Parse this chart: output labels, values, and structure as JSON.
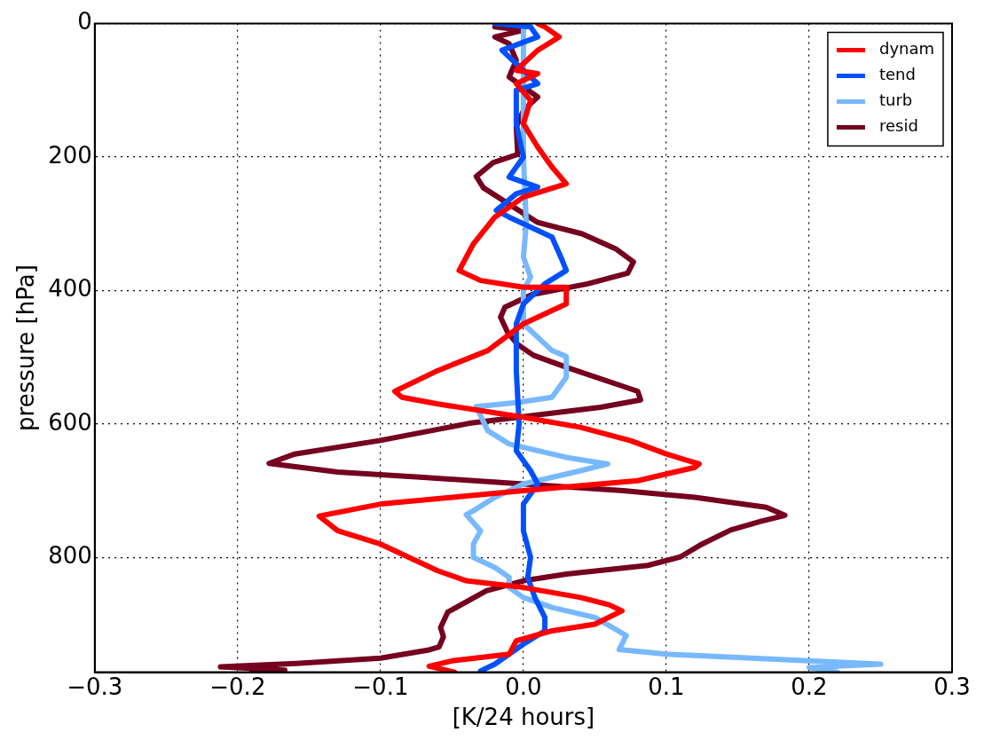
{
  "chart_data": {
    "type": "line",
    "xlabel": "[K/24 hours]",
    "ylabel": "pressure [hPa]",
    "xlim": [
      -0.3,
      0.3
    ],
    "xticks": [
      {
        "value": -0.3,
        "label": "−0.3"
      },
      {
        "value": -0.2,
        "label": "−0.2"
      },
      {
        "value": -0.1,
        "label": "−0.1"
      },
      {
        "value": 0,
        "label": "0.0"
      },
      0.1,
      0.2,
      0.3
    ],
    "ylim": [
      972,
      0
    ],
    "yticks": [
      0,
      200,
      400,
      600,
      800
    ],
    "grid": true,
    "legend": "top right",
    "marker": "none",
    "line_style": "solid",
    "series": [
      {
        "name": "dynam",
        "color": "#ff0000",
        "x": [
          0.01,
          0.015,
          0.025,
          0.01,
          -0.005,
          0.01,
          -0.005,
          0.005,
          0.0,
          0.01,
          0.02,
          0.03,
          0.0,
          -0.02,
          -0.035,
          -0.045,
          -0.03,
          0.0,
          0.03,
          0.03,
          0.0,
          -0.025,
          -0.06,
          -0.09,
          -0.085,
          -0.06,
          0.0,
          0.04,
          0.075,
          0.1,
          0.123,
          0.12,
          0.08,
          0.0,
          -0.05,
          -0.1,
          -0.143,
          -0.13,
          -0.1,
          -0.08,
          -0.06,
          -0.04,
          0.0,
          0.04,
          0.06,
          0.069,
          0.05,
          0.02,
          -0.005,
          -0.01,
          -0.05,
          -0.066,
          -0.048
        ],
        "values": [
          0,
          5,
          20,
          40,
          70,
          75,
          90,
          115,
          150,
          185,
          215,
          240,
          260,
          290,
          330,
          370,
          385,
          395,
          395,
          420,
          450,
          490,
          520,
          551,
          560,
          570,
          590,
          605,
          625,
          645,
          660,
          665,
          685,
          700,
          710,
          720,
          738,
          760,
          780,
          800,
          820,
          835,
          845,
          860,
          871,
          880,
          900,
          910,
          925,
          945,
          955,
          963,
          972
        ]
      },
      {
        "name": "tend",
        "color": "#0050ff",
        "x": [
          -0.02,
          0.005,
          0.01,
          -0.015,
          -0.005,
          0.01,
          -0.005,
          -0.005,
          0.0,
          -0.01,
          0.01,
          -0.005,
          -0.019,
          -0.01,
          0.02,
          0.027,
          0.03,
          0.015,
          0.0,
          -0.005,
          -0.005,
          -0.003,
          -0.005,
          0.005,
          0.01,
          0.0,
          0.0,
          0.005,
          0.003,
          0.008,
          0.015,
          0.015,
          0.0,
          -0.01,
          -0.02,
          -0.03
        ],
        "values": [
          0,
          5,
          20,
          40,
          60,
          90,
          100,
          150,
          200,
          230,
          245,
          255,
          280,
          290,
          320,
          354,
          370,
          390,
          420,
          450,
          520,
          600,
          640,
          670,
          690,
          720,
          760,
          800,
          830,
          860,
          890,
          910,
          930,
          945,
          960,
          970
        ]
      },
      {
        "name": "turb",
        "color": "#78b8ff",
        "x": [
          0.0,
          0.0,
          0.002,
          0.0,
          0.005,
          0.0,
          0.0,
          0.02,
          0.03,
          0.03,
          0.02,
          -0.005,
          -0.033,
          -0.025,
          -0.01,
          0.03,
          0.059,
          0.04,
          0.0,
          -0.02,
          -0.035,
          -0.04,
          -0.03,
          -0.035,
          -0.035,
          -0.02,
          -0.01,
          -0.01,
          0.0,
          0.02,
          0.05,
          0.072,
          0.067,
          0.1,
          0.15,
          0.2,
          0.25,
          0.2,
          0.22
        ],
        "values": [
          0,
          200,
          300,
          350,
          380,
          400,
          450,
          490,
          499,
          530,
          560,
          568,
          574,
          610,
          630,
          650,
          660,
          670,
          690,
          710,
          730,
          736,
          760,
          780,
          800,
          815,
          830,
          845,
          860,
          875,
          890,
          917,
          938,
          945,
          950,
          955,
          960,
          965,
          972
        ]
      },
      {
        "name": "resid",
        "color": "#75001f",
        "x": [
          -0.02,
          0.0,
          -0.02,
          -0.01,
          -0.005,
          -0.01,
          0.0,
          0.01,
          0.0,
          -0.005,
          -0.004,
          -0.021,
          -0.033,
          -0.028,
          0.01,
          0.041,
          0.065,
          0.077,
          0.073,
          0.045,
          0.006,
          -0.013,
          -0.016,
          -0.011,
          -0.004,
          0.007,
          0.03,
          0.08,
          0.082,
          0.054,
          -0.038,
          -0.101,
          -0.16,
          -0.178,
          -0.13,
          -0.07,
          0.0,
          0.07,
          0.12,
          0.17,
          0.183,
          0.166,
          0.145,
          0.125,
          0.11,
          0.087,
          0.03,
          0.0,
          -0.026,
          -0.053,
          -0.058,
          -0.056,
          -0.059,
          -0.067,
          -0.1,
          -0.159,
          -0.212,
          -0.167,
          -0.19
        ],
        "values": [
          5,
          10,
          20,
          30,
          55,
          80,
          95,
          110,
          130,
          155,
          196,
          208,
          229,
          246,
          298,
          315,
          338,
          357,
          374,
          390,
          406,
          425,
          440,
          463,
          481,
          497,
          515,
          551,
          564,
          575,
          599,
          625,
          645,
          659,
          672,
          680,
          690,
          700,
          710,
          725,
          737,
          746,
          759,
          780,
          799,
          812,
          825,
          835,
          850,
          882,
          905,
          919,
          934,
          939,
          951,
          959,
          964,
          969,
          970
        ]
      }
    ]
  }
}
